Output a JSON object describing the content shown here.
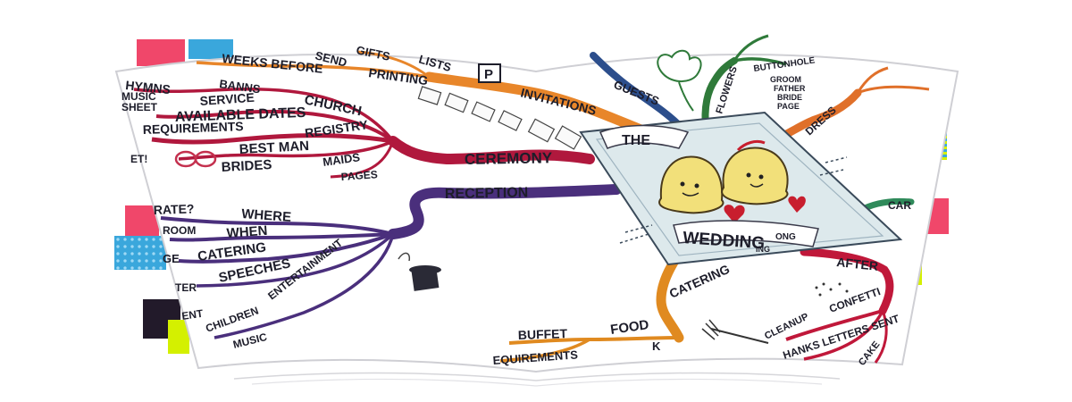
{
  "center": {
    "line1": "THE",
    "line2": "WEDDING",
    "line3": "ONG",
    "line4": "ING"
  },
  "branches": {
    "ceremony": {
      "label": "CEREMONY",
      "items": [
        "HYMNS",
        "BANNS",
        "MUSIC",
        "SHEET",
        "SERVICE",
        "CHURCH",
        "AVAILABLE DATES",
        "REQUIREMENTS",
        "REGISTRY",
        "BEST MAN",
        "MAIDS",
        "BRIDES",
        "PAGES",
        "ET!"
      ]
    },
    "invitations": {
      "label": "INVITATIONS",
      "items": [
        "WEEKS BEFORE",
        "SEND",
        "GIFTS",
        "LISTS",
        "PRINTING",
        "P"
      ]
    },
    "guests": {
      "label": "GUESTS"
    },
    "flowers": {
      "label": "FLOWERS",
      "items": [
        "BUTTONHOLE",
        "GROOM",
        "FATHER",
        "BRIDE",
        "PAGE"
      ]
    },
    "dress": {
      "label": "DRESS"
    },
    "cars": {
      "label": "CAR"
    },
    "reception": {
      "label": "RECEPTION",
      "items": [
        "RATE?",
        "WHERE",
        "WHEN",
        "CATERING",
        "SPEECHES",
        "ENTERTAINMENT",
        "ROOM",
        "GE",
        "TER",
        "ENT",
        "CHILDREN",
        "MUSIC"
      ]
    },
    "catering": {
      "label": "CATERING",
      "items": [
        "FOOD",
        "BUFFET",
        "EQUIREMENTS",
        "K"
      ]
    },
    "after": {
      "label": "AFTER",
      "items": [
        "CLEANUP",
        "CONFETTI",
        "HANKS LETTERS SENT",
        "CAKE"
      ]
    }
  },
  "colors": {
    "ceremony": "#b0183d",
    "reception": "#4a2f7c",
    "invitations": "#e8862a",
    "guests": "#2c4e8c",
    "flowers": "#2f7a3a",
    "dress": "#e0702a",
    "cars": "#2f8a5a",
    "catering": "#e08a20",
    "after": "#c0183a",
    "tape_pink": "#f0476a",
    "tape_blue": "#3aa7dc",
    "tape_lime": "#d4f000",
    "tape_black": "#221a2a",
    "center_panel": "#dde9ec"
  }
}
